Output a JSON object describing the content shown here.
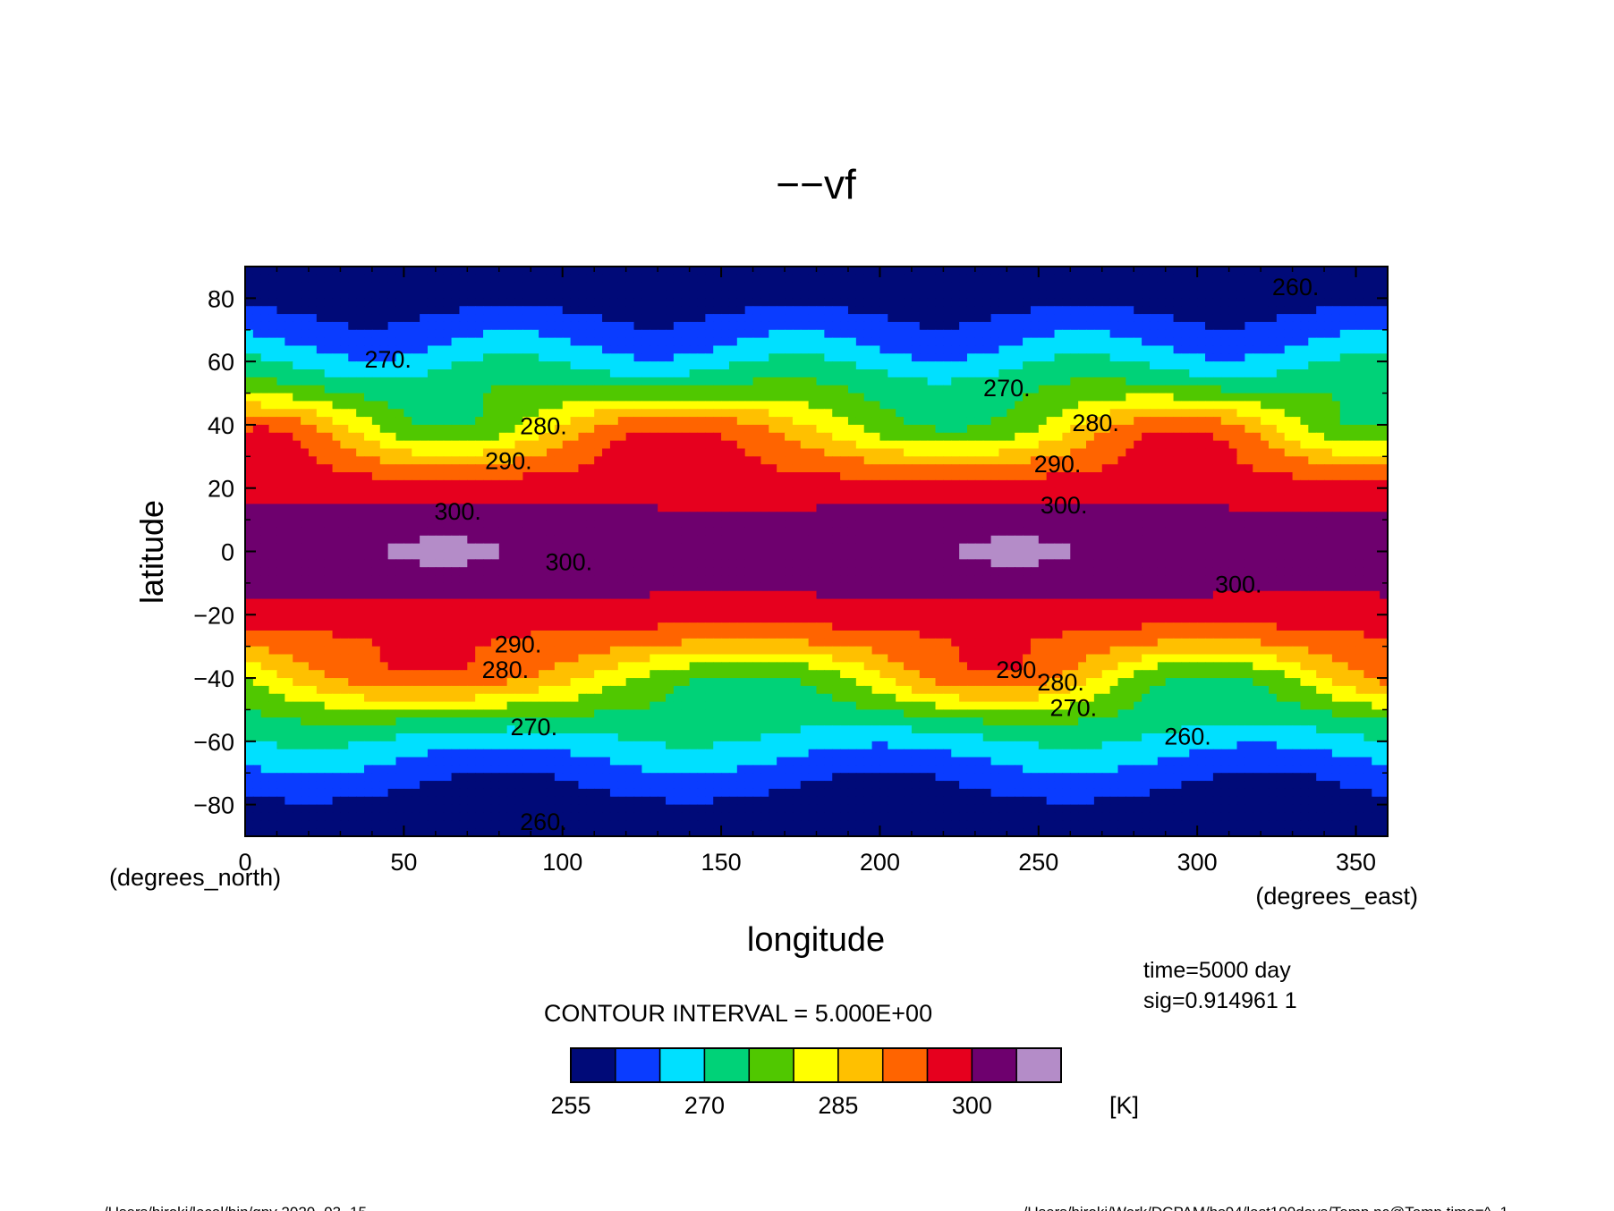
{
  "chart_data": {
    "type": "heatmap",
    "subtype": "filled-contour",
    "title": "−−vf",
    "xlabel": "longitude",
    "ylabel": "latitude",
    "x_units": "(degrees_east)",
    "y_units": "(degrees_north)",
    "xlim": [
      0,
      360
    ],
    "ylim": [
      -90,
      90
    ],
    "x_ticks": [
      0,
      50,
      100,
      150,
      200,
      250,
      300,
      350
    ],
    "y_ticks": [
      80,
      60,
      40,
      20,
      0,
      -20,
      -40,
      -60,
      -80
    ],
    "x_tick_labels": [
      "0",
      "50",
      "100",
      "150",
      "200",
      "250",
      "300",
      "350"
    ],
    "y_tick_labels": [
      "80",
      "60",
      "40",
      "20",
      "0",
      "−20",
      "−40",
      "−60",
      "−80"
    ],
    "grid": false,
    "contour_interval_text": "CONTOUR INTERVAL = 5.000E+00",
    "contour_interval": 5,
    "annotation_time": "time=5000 day",
    "annotation_sig": "sig=0.914961 1",
    "colorbar": {
      "levels": [
        255,
        260,
        265,
        270,
        275,
        280,
        285,
        290,
        295,
        300,
        305,
        310
      ],
      "colors": [
        "#000a78",
        "#0a3cff",
        "#00e0ff",
        "#00d278",
        "#50c800",
        "#ffff00",
        "#ffc000",
        "#ff6400",
        "#e6001e",
        "#6e006e",
        "#b48cc8"
      ],
      "tick_values": [
        255,
        270,
        285,
        300
      ],
      "tick_labels": [
        "255",
        "270",
        "285",
        "300"
      ],
      "unit": "[K]"
    },
    "contour_labels": [
      {
        "text": "270.",
        "lon": 45,
        "lat": 58
      },
      {
        "text": "280.",
        "lon": 94,
        "lat": 37
      },
      {
        "text": "290.",
        "lon": 83,
        "lat": 26
      },
      {
        "text": "300.",
        "lon": 67,
        "lat": 10
      },
      {
        "text": "270.",
        "lon": 240,
        "lat": 49
      },
      {
        "text": "280.",
        "lon": 268,
        "lat": 38
      },
      {
        "text": "290.",
        "lon": 256,
        "lat": 25
      },
      {
        "text": "300.",
        "lon": 258,
        "lat": 12
      },
      {
        "text": "260.",
        "lon": 331,
        "lat": 81
      },
      {
        "text": "300.",
        "lon": 102,
        "lat": -6
      },
      {
        "text": "300.",
        "lon": 313,
        "lat": -13
      },
      {
        "text": "290.",
        "lon": 86,
        "lat": -32
      },
      {
        "text": "280.",
        "lon": 82,
        "lat": -40
      },
      {
        "text": "270.",
        "lon": 91,
        "lat": -58
      },
      {
        "text": "290.",
        "lon": 244,
        "lat": -40
      },
      {
        "text": "280.",
        "lon": 257,
        "lat": -44
      },
      {
        "text": "270.",
        "lon": 261,
        "lat": -52
      },
      {
        "text": "260.",
        "lon": 297,
        "lat": -61
      },
      {
        "text": "260.",
        "lon": 94,
        "lat": -88
      }
    ]
  },
  "footer": {
    "left": "/Users/hiroki/local/bin/gpv  2020−03−15",
    "right": "/Users/hiroki/Work/DCPAM/hs94/last100days/Temp.nc@Temp,time=^−1"
  }
}
